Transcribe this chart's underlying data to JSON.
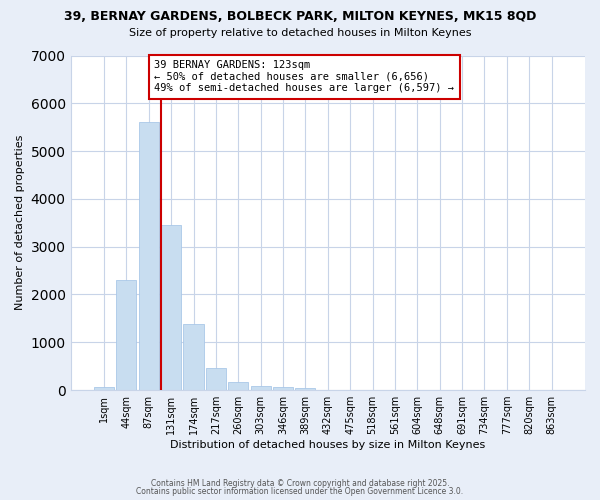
{
  "title_line1": "39, BERNAY GARDENS, BOLBECK PARK, MILTON KEYNES, MK15 8QD",
  "title_line2": "Size of property relative to detached houses in Milton Keynes",
  "xlabel": "Distribution of detached houses by size in Milton Keynes",
  "ylabel": "Number of detached properties",
  "bar_labels": [
    "1sqm",
    "44sqm",
    "87sqm",
    "131sqm",
    "174sqm",
    "217sqm",
    "260sqm",
    "303sqm",
    "346sqm",
    "389sqm",
    "432sqm",
    "475sqm",
    "518sqm",
    "561sqm",
    "604sqm",
    "648sqm",
    "691sqm",
    "734sqm",
    "777sqm",
    "820sqm",
    "863sqm"
  ],
  "bar_values": [
    70,
    2300,
    5600,
    3450,
    1380,
    470,
    175,
    80,
    60,
    50,
    0,
    0,
    0,
    0,
    0,
    0,
    0,
    0,
    0,
    0,
    0
  ],
  "bar_color": "#c8ddf0",
  "bar_edge_color": "#aac8e8",
  "vline_color": "#cc0000",
  "vline_x_index": 3,
  "annotation_text": "39 BERNAY GARDENS: 123sqm\n← 50% of detached houses are smaller (6,656)\n49% of semi-detached houses are larger (6,597) →",
  "annotation_box_color": "#cc0000",
  "ylim": [
    0,
    7000
  ],
  "yticks": [
    0,
    1000,
    2000,
    3000,
    4000,
    5000,
    6000,
    7000
  ],
  "plot_bg_color": "#ffffff",
  "fig_bg_color": "#e8eef8",
  "grid_color": "#c8d4e8",
  "footer_line1": "Contains HM Land Registry data © Crown copyright and database right 2025.",
  "footer_line2": "Contains public sector information licensed under the Open Government Licence 3.0."
}
